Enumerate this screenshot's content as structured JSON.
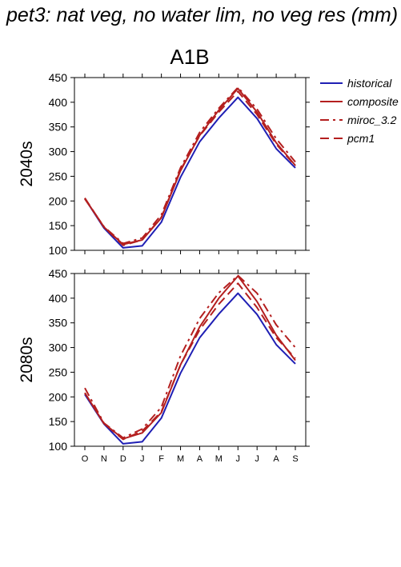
{
  "figure": {
    "title": "pet3: nat veg, no water lim, no veg res (mm)",
    "scenario": "A1B"
  },
  "legend": [
    {
      "name": "historical",
      "color": "#1f1fb4",
      "dash": "solid"
    },
    {
      "name": "composite",
      "color": "#b41f1f",
      "dash": "solid"
    },
    {
      "name": "miroc_3.2",
      "color": "#b41f1f",
      "dash": "dashdot"
    },
    {
      "name": "pcm1",
      "color": "#b41f1f",
      "dash": "dashed"
    }
  ],
  "chart_data": [
    {
      "type": "line",
      "panel_label": "2040s",
      "categories": [
        "O",
        "N",
        "D",
        "J",
        "F",
        "M",
        "A",
        "M",
        "J",
        "J",
        "A",
        "S"
      ],
      "ylim": [
        100,
        450
      ],
      "yticks": [
        100,
        150,
        200,
        250,
        300,
        350,
        400,
        450
      ],
      "series": [
        {
          "name": "historical",
          "values": [
            205,
            145,
            105,
            109,
            157,
            248,
            320,
            368,
            410,
            367,
            306,
            267
          ]
        },
        {
          "name": "composite",
          "values": [
            205,
            147,
            112,
            121,
            166,
            261,
            333,
            384,
            428,
            380,
            318,
            272
          ]
        },
        {
          "name": "miroc_3.2",
          "values": [
            204,
            148,
            114,
            125,
            172,
            267,
            339,
            388,
            430,
            386,
            326,
            279
          ]
        },
        {
          "name": "pcm1",
          "values": [
            206,
            147,
            110,
            121,
            167,
            263,
            332,
            380,
            422,
            375,
            315,
            271
          ]
        }
      ]
    },
    {
      "type": "line",
      "panel_label": "2080s",
      "categories": [
        "O",
        "N",
        "D",
        "J",
        "F",
        "M",
        "A",
        "M",
        "J",
        "J",
        "A",
        "S"
      ],
      "ylim": [
        100,
        450
      ],
      "yticks": [
        100,
        150,
        200,
        250,
        300,
        350,
        400,
        450
      ],
      "series": [
        {
          "name": "historical",
          "values": [
            205,
            145,
            105,
            109,
            157,
            248,
            320,
            368,
            410,
            367,
            306,
            267
          ]
        },
        {
          "name": "composite",
          "values": [
            208,
            146,
            115,
            127,
            168,
            265,
            342,
            400,
            445,
            393,
            325,
            274
          ]
        },
        {
          "name": "miroc_3.2",
          "values": [
            218,
            147,
            117,
            135,
            179,
            283,
            359,
            411,
            446,
            410,
            346,
            300
          ]
        },
        {
          "name": "pcm1",
          "values": [
            208,
            146,
            114,
            131,
            170,
            265,
            336,
            388,
            430,
            381,
            320,
            278
          ]
        }
      ]
    }
  ]
}
